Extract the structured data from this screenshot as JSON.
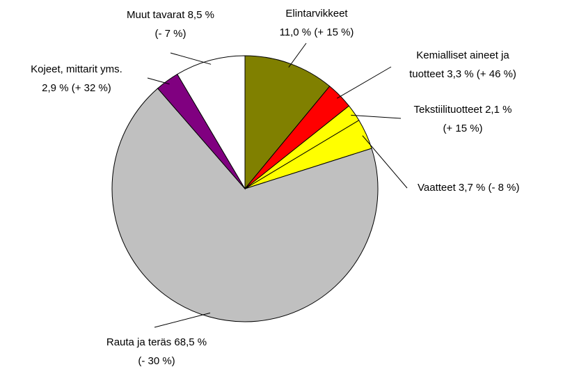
{
  "chart_data": {
    "type": "pie",
    "values": [
      11.0,
      3.3,
      2.1,
      3.7,
      68.5,
      2.9,
      8.5
    ],
    "value_labels": [
      [
        "Elintarvikkeet",
        "11,0 % (+ 15 %)"
      ],
      [
        "Kemialliset aineet ja",
        "tuotteet 3,3 % (+ 46 %)"
      ],
      [
        "Tekstiilituotteet 2,1 %",
        "(+ 15 %)"
      ],
      [
        "Vaatteet 3,7 % (- 8 %)"
      ],
      [
        "Rauta ja teräs 68,5 %",
        "(- 30 %)"
      ],
      [
        "Kojeet, mittarit yms.",
        "2,9 % (+ 32 %)"
      ],
      [
        "Muut tavarat 8,5 %",
        "(- 7 %)"
      ]
    ],
    "colors": [
      "#808000",
      "#ff0000",
      "#ffff00",
      "#ffff00",
      "#c0c0c0",
      "#800080",
      "#ffffff"
    ]
  }
}
